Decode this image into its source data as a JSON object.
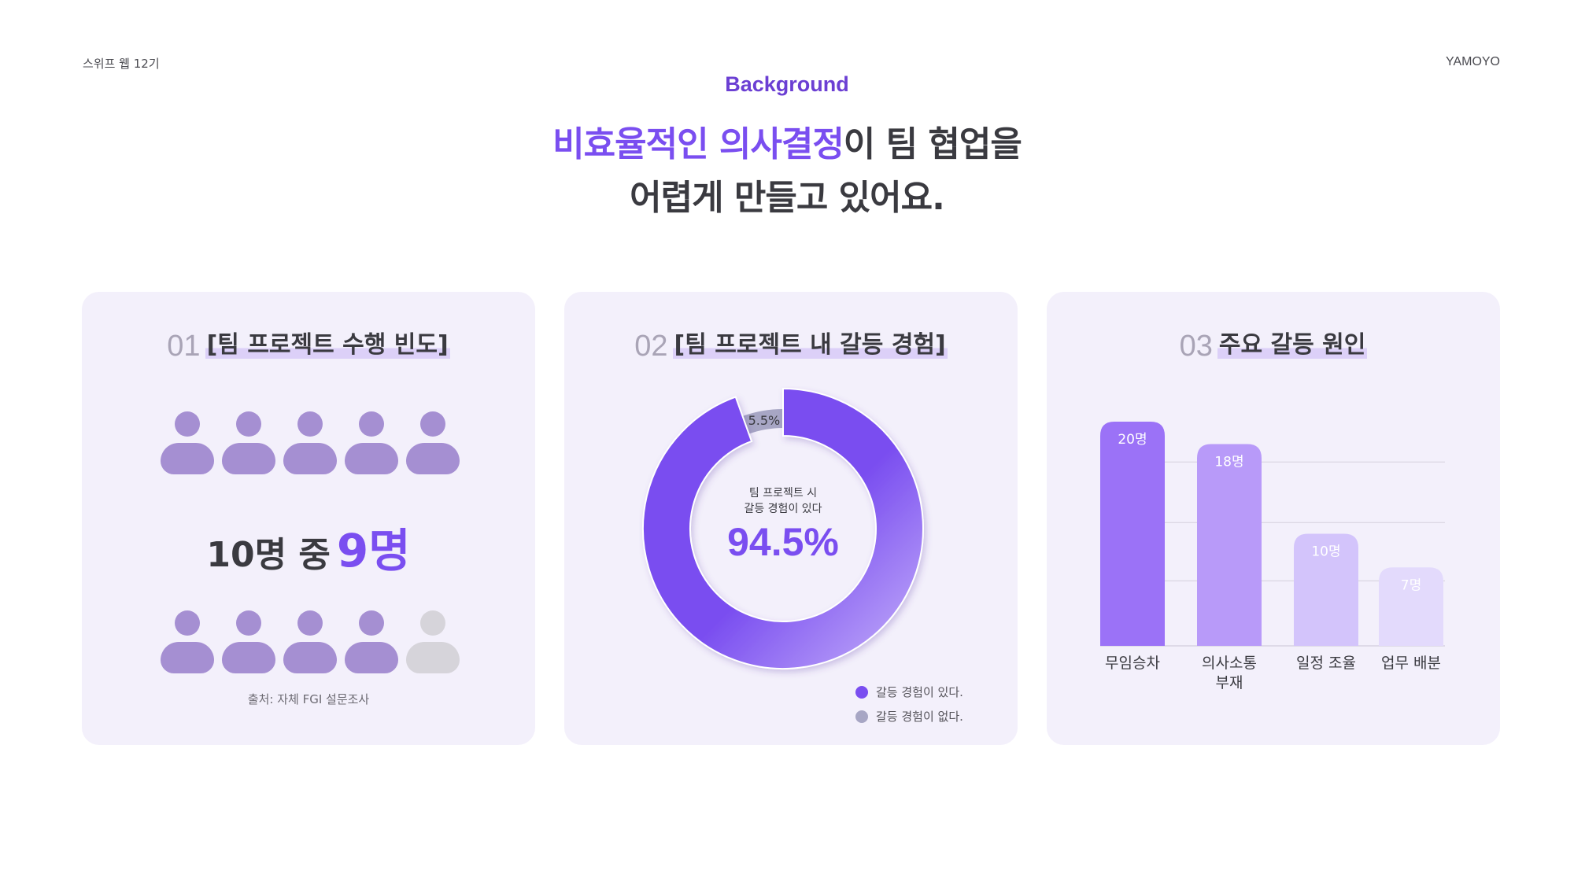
{
  "header": {
    "left": "스위프 웹 12기",
    "right": "YAMOYO",
    "kicker": "Background",
    "headline_highlight": "비효율적인 의사결정",
    "headline_rest": "이 팀 협업을",
    "headline_line2": "어렵게 만들고 있어요."
  },
  "card1": {
    "num": "01",
    "title": "[팀 프로젝트 수행 빈도]",
    "ratio_prefix": "10명 중",
    "ratio_value": "9명",
    "people_total": 10,
    "people_active": 9,
    "source": "출처: 자체 FGI 설문조사"
  },
  "card2": {
    "num": "02",
    "title": "[팀 프로젝트 내 갈등 경험]",
    "center_line1": "팀 프로젝트 시",
    "center_line2": "갈등 경험이 있다",
    "center_value": "94.5%",
    "small_label": "5.5%",
    "legend": [
      {
        "label": "갈등 경험이 있다.",
        "color": "#7a4ef0"
      },
      {
        "label": "갈등 경험이 없다.",
        "color": "#a7a6c4"
      }
    ]
  },
  "card3": {
    "num": "03",
    "title": "주요 갈등 원인"
  },
  "chart_data": [
    {
      "type": "pie",
      "labels": [
        "갈등 경험이 있다.",
        "갈등 경험이 없다."
      ],
      "values": [
        94.5,
        5.5
      ],
      "colors": [
        "#7a4ef0",
        "#a7a6c4"
      ]
    },
    {
      "type": "bar",
      "categories": [
        "무임승차",
        "의사소통 부재",
        "일정 조율",
        "업무 배분"
      ],
      "values": [
        20,
        18,
        10,
        7
      ],
      "value_labels": [
        "20명",
        "18명",
        "10명",
        "7명"
      ],
      "colors": [
        "#9b72f7",
        "#b89af9",
        "#d3c4fb",
        "#e3dafc"
      ],
      "ylim": [
        0,
        20
      ],
      "grid": true
    }
  ]
}
